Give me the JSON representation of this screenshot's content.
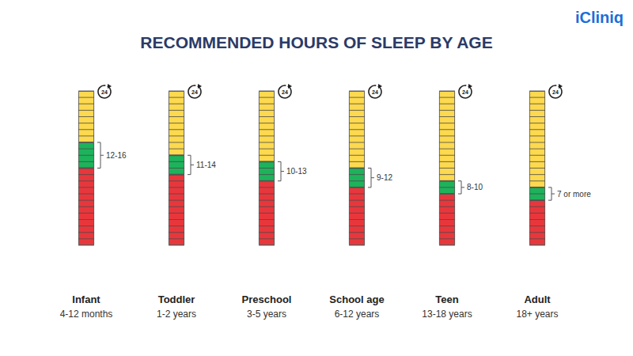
{
  "chart_data": {
    "type": "bar",
    "title": "RECOMMENDED HOURS OF SLEEP BY AGE",
    "brand": "iCliniq",
    "scale_label": "24",
    "categories": [
      "Infant",
      "Toddler",
      "Preschool",
      "School age",
      "Teen",
      "Adult"
    ],
    "category_sublabels": [
      "4-12 months",
      "1-2 years",
      "3-5 years",
      "6-12 years",
      "13-18 years",
      "18+ years"
    ],
    "series": [
      {
        "color": "#e8373c",
        "values": [
          12,
          11,
          10,
          9,
          8,
          7
        ]
      },
      {
        "color": "#1db35b",
        "values": [
          4,
          3,
          3,
          3,
          2,
          2
        ]
      },
      {
        "color": "#fcd94e",
        "values": [
          8,
          10,
          11,
          12,
          14,
          15
        ]
      }
    ],
    "range_labels": [
      "12-16",
      "11-14",
      "10-13",
      "9-12",
      "8-10",
      "7 or more"
    ],
    "stacked": true,
    "ylim": [
      0,
      24
    ],
    "yticks": [
      0,
      1,
      2,
      3,
      4,
      5,
      6,
      7,
      8,
      9,
      10,
      11,
      12,
      13,
      14,
      15,
      16,
      17,
      18,
      19,
      20,
      21,
      22,
      23,
      24
    ],
    "tick_labels": false,
    "grid": false
  }
}
